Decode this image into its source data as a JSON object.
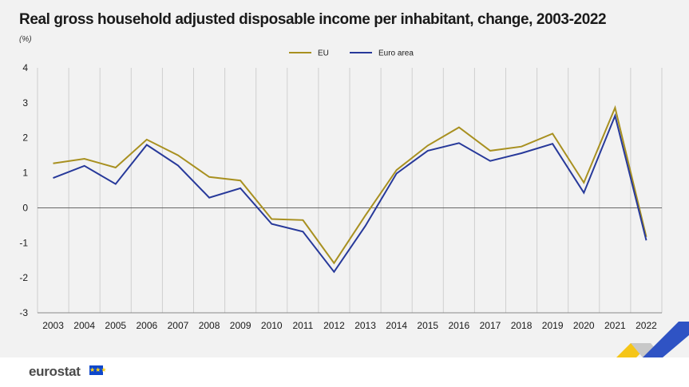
{
  "title": "Real gross household adjusted disposable income per inhabitant, change, 2003-2022",
  "unit_label": "(%)",
  "footer": {
    "logo_text": "eurostat"
  },
  "colors": {
    "eu": "#a89020",
    "euro_area": "#27399a",
    "background": "#f2f2f2",
    "grid": "#cfcfcf"
  },
  "chart_data": {
    "type": "line",
    "title": "Real gross household adjusted disposable income per inhabitant, change, 2003-2022",
    "ylabel": "(%)",
    "xlabel": "",
    "ylim": [
      -3,
      4
    ],
    "yticks": [
      -3,
      -2,
      -1,
      0,
      1,
      2,
      3,
      4
    ],
    "grid": "vertical",
    "legend_position": "top-center",
    "x": [
      "2003",
      "2004",
      "2005",
      "2006",
      "2007",
      "2008",
      "2009",
      "2010",
      "2011",
      "2012",
      "2013",
      "2014",
      "2015",
      "2016",
      "2017",
      "2018",
      "2019",
      "2020",
      "2021",
      "2022"
    ],
    "series": [
      {
        "name": "EU",
        "color": "#a89020",
        "values": [
          1.27,
          1.4,
          1.15,
          1.95,
          1.5,
          0.88,
          0.78,
          -0.32,
          -0.35,
          -1.58,
          -0.22,
          1.08,
          1.78,
          2.3,
          1.63,
          1.75,
          2.12,
          0.72,
          2.86,
          -0.83
        ]
      },
      {
        "name": "Euro area",
        "color": "#27399a",
        "values": [
          0.85,
          1.2,
          0.68,
          1.8,
          1.21,
          0.29,
          0.56,
          -0.46,
          -0.68,
          -1.83,
          -0.52,
          0.98,
          1.63,
          1.85,
          1.34,
          1.56,
          1.83,
          0.43,
          2.63,
          -0.93
        ]
      }
    ]
  }
}
